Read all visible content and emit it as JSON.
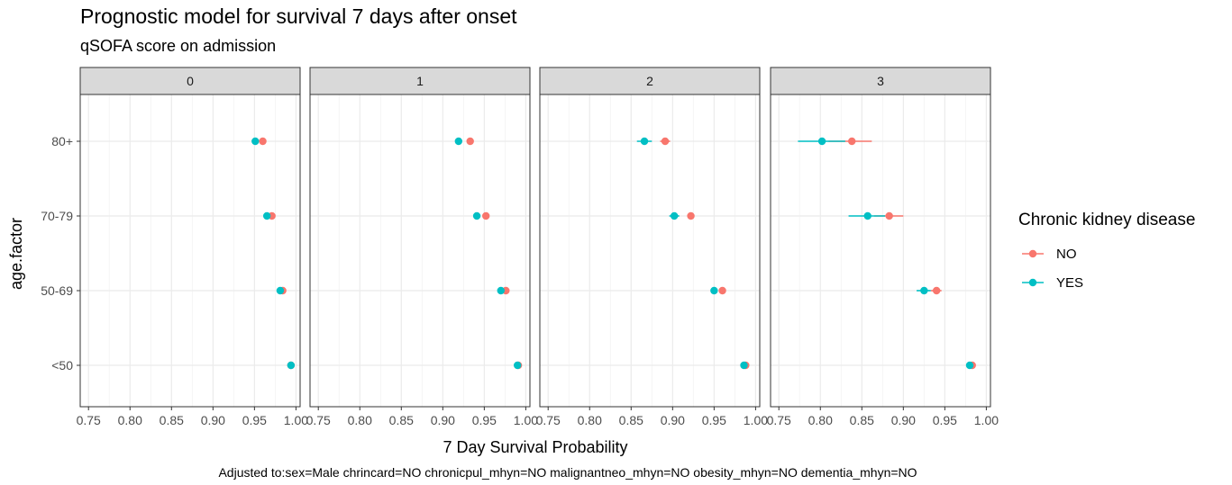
{
  "chart_data": {
    "type": "scatter",
    "title": "Prognostic model for survival 7 days after onset",
    "subtitle": "qSOFA score on admission",
    "xlabel": "7 Day Survival Probability",
    "ylabel": "age.factor",
    "caption": "Adjusted to:sex=Male chrincard=NO chronicpul_mhyn=NO malignantneo_mhyn=NO obesity_mhyn=NO dementia_mhyn=NO",
    "xlim": [
      0.74,
      1.005
    ],
    "x_ticks": [
      0.75,
      0.8,
      0.85,
      0.9,
      0.95,
      1.0
    ],
    "x_tick_labels": [
      "0.75",
      "0.80",
      "0.85",
      "0.90",
      "0.95",
      "1.00"
    ],
    "categories": [
      "<50",
      "50-69",
      "70-79",
      "80+"
    ],
    "facet_label": "qSOFA score on admission",
    "facets": [
      "0",
      "1",
      "2",
      "3"
    ],
    "legend": {
      "title": "Chronic kidney disease",
      "entries": [
        "NO",
        "YES"
      ],
      "colors": [
        "#F8766D",
        "#00BFC4"
      ]
    },
    "grid": true,
    "series": [
      {
        "name": "NO",
        "color": "#F8766D",
        "panels": [
          {
            "facet": "0",
            "points": [
              {
                "age": "80+",
                "x": 0.96,
                "low": 0.958,
                "high": 0.962
              },
              {
                "age": "70-79",
                "x": 0.971,
                "low": 0.969,
                "high": 0.973
              },
              {
                "age": "50-69",
                "x": 0.984,
                "low": 0.983,
                "high": 0.985
              },
              {
                "age": "<50",
                "x": 0.994,
                "low": 0.993,
                "high": 0.995
              }
            ]
          },
          {
            "facet": "1",
            "points": [
              {
                "age": "80+",
                "x": 0.933,
                "low": 0.931,
                "high": 0.935
              },
              {
                "age": "70-79",
                "x": 0.952,
                "low": 0.95,
                "high": 0.954
              },
              {
                "age": "50-69",
                "x": 0.976,
                "low": 0.975,
                "high": 0.977
              },
              {
                "age": "<50",
                "x": 0.991,
                "low": 0.99,
                "high": 0.992
              }
            ]
          },
          {
            "facet": "2",
            "points": [
              {
                "age": "80+",
                "x": 0.891,
                "low": 0.885,
                "high": 0.897
              },
              {
                "age": "70-79",
                "x": 0.922,
                "low": 0.918,
                "high": 0.926
              },
              {
                "age": "50-69",
                "x": 0.96,
                "low": 0.958,
                "high": 0.962
              },
              {
                "age": "<50",
                "x": 0.988,
                "low": 0.987,
                "high": 0.989
              }
            ]
          },
          {
            "facet": "3",
            "points": [
              {
                "age": "80+",
                "x": 0.838,
                "low": 0.81,
                "high": 0.862
              },
              {
                "age": "70-79",
                "x": 0.883,
                "low": 0.865,
                "high": 0.9
              },
              {
                "age": "50-69",
                "x": 0.94,
                "low": 0.933,
                "high": 0.946
              },
              {
                "age": "<50",
                "x": 0.983,
                "low": 0.981,
                "high": 0.985
              }
            ]
          }
        ]
      },
      {
        "name": "YES",
        "color": "#00BFC4",
        "panels": [
          {
            "facet": "0",
            "points": [
              {
                "age": "80+",
                "x": 0.951,
                "low": 0.948,
                "high": 0.954
              },
              {
                "age": "70-79",
                "x": 0.965,
                "low": 0.963,
                "high": 0.967
              },
              {
                "age": "50-69",
                "x": 0.981,
                "low": 0.98,
                "high": 0.982
              },
              {
                "age": "<50",
                "x": 0.994,
                "low": 0.993,
                "high": 0.995
              }
            ]
          },
          {
            "facet": "1",
            "points": [
              {
                "age": "80+",
                "x": 0.919,
                "low": 0.916,
                "high": 0.922
              },
              {
                "age": "70-79",
                "x": 0.941,
                "low": 0.939,
                "high": 0.943
              },
              {
                "age": "50-69",
                "x": 0.97,
                "low": 0.969,
                "high": 0.971
              },
              {
                "age": "<50",
                "x": 0.99,
                "low": 0.989,
                "high": 0.991
              }
            ]
          },
          {
            "facet": "2",
            "points": [
              {
                "age": "80+",
                "x": 0.866,
                "low": 0.857,
                "high": 0.875
              },
              {
                "age": "70-79",
                "x": 0.902,
                "low": 0.896,
                "high": 0.908
              },
              {
                "age": "50-69",
                "x": 0.95,
                "low": 0.948,
                "high": 0.952
              },
              {
                "age": "<50",
                "x": 0.986,
                "low": 0.985,
                "high": 0.987
              }
            ]
          },
          {
            "facet": "3",
            "points": [
              {
                "age": "80+",
                "x": 0.802,
                "low": 0.773,
                "high": 0.83
              },
              {
                "age": "70-79",
                "x": 0.857,
                "low": 0.834,
                "high": 0.878
              },
              {
                "age": "50-69",
                "x": 0.925,
                "low": 0.916,
                "high": 0.933
              },
              {
                "age": "<50",
                "x": 0.98,
                "low": 0.978,
                "high": 0.982
              }
            ]
          }
        ]
      }
    ]
  }
}
